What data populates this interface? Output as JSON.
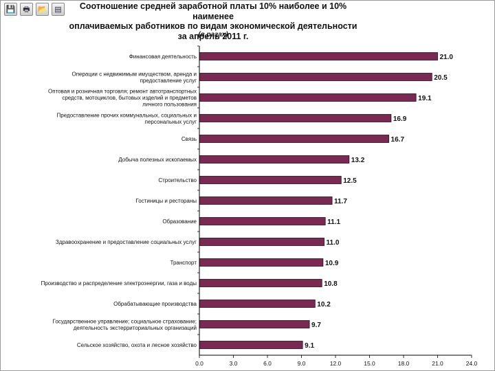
{
  "toolbar": {
    "buttons": [
      {
        "name": "save",
        "glyph": "💾"
      },
      {
        "name": "print",
        "glyph": "🖶"
      },
      {
        "name": "open",
        "glyph": "📂"
      },
      {
        "name": "chart",
        "glyph": "▤"
      }
    ]
  },
  "colors": {
    "bar": "#7a2a52",
    "axis": "#000000"
  },
  "chart_data": {
    "type": "bar",
    "orientation": "horizontal",
    "title_lines": [
      "Соотношение средней заработной платы 10% наиболее  и 10% наименее",
      "оплачиваемых работников по видам экономической деятельности",
      "за апрель 2011 г."
    ],
    "subtitle": "(в разах)",
    "categories": [
      [
        "Финансовая деятельность"
      ],
      [
        "Операции с недвижимым имуществом, аренда и",
        "предоставление услуг"
      ],
      [
        "Оптовая и розничная торговля; ремонт автотранспортных",
        "средств, мотоциклов, бытовых изделий и предметов",
        "личного пользования"
      ],
      [
        "Предоставление прочих коммунальных, социальных и",
        "персональных услуг"
      ],
      [
        "Связь"
      ],
      [
        "Добыча полезных ископаемых"
      ],
      [
        "Строительство"
      ],
      [
        "Гостиницы и рестораны"
      ],
      [
        "Образование"
      ],
      [
        "Здравоохранение и предоставление социальных услуг"
      ],
      [
        "Транспорт"
      ],
      [
        "Производство и распределение электроэнергии, газа и воды"
      ],
      [
        "Обрабатывающие производства"
      ],
      [
        "Государственное управление; социальное страхование;",
        "деятельность экстерриториальных организаций"
      ],
      [
        "Сельское хозяйство, охота  и лесное хозяйство"
      ]
    ],
    "values": [
      21.0,
      20.5,
      19.1,
      16.9,
      16.7,
      13.2,
      12.5,
      11.7,
      11.1,
      11.0,
      10.9,
      10.8,
      10.2,
      9.7,
      9.1
    ],
    "value_labels": [
      "21.0",
      "20.5",
      "19.1",
      "16.9",
      "16.7",
      "13.2",
      "12.5",
      "11.7",
      "11.1",
      "11.0",
      "10.9",
      "10.8",
      "10.2",
      "9.7",
      "9.1"
    ],
    "xlim": [
      0,
      24
    ],
    "ticks": [
      0,
      3,
      6,
      9,
      12,
      15,
      18,
      21,
      24
    ],
    "tick_labels": [
      "0.0",
      "3.0",
      "6.0",
      "9.0",
      "12.0",
      "15.0",
      "18.0",
      "21.0",
      "24.0"
    ],
    "grid": false,
    "legend": "none"
  }
}
